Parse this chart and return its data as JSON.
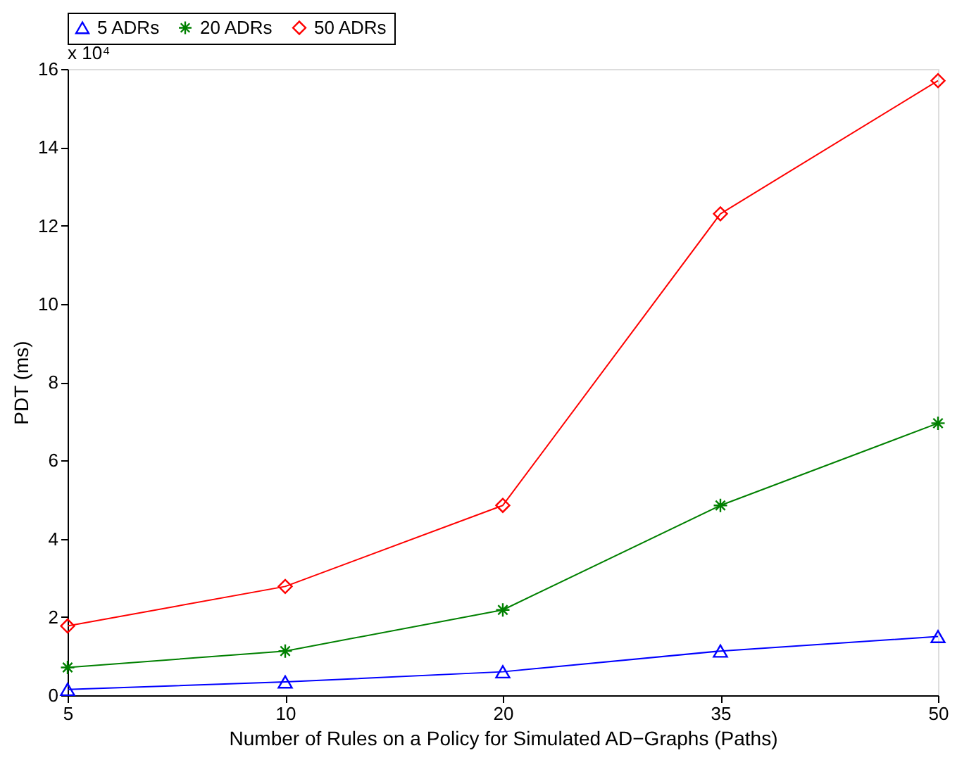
{
  "chart_data": {
    "type": "line",
    "xlabel": "Number of Rules on a Policy for Simulated AD−Graphs (Paths)",
    "ylabel": "PDT (ms)",
    "annotations": [
      "x 10⁴"
    ],
    "categories": [
      "5",
      "10",
      "20",
      "35",
      "50"
    ],
    "ylim": [
      0,
      16
    ],
    "yticks": [
      0,
      2,
      4,
      6,
      8,
      10,
      12,
      14,
      16
    ],
    "grid": false,
    "legend": "top",
    "series": [
      {
        "name": "5 ADRs",
        "color": "#0000ff",
        "marker": "triangle",
        "values": [
          0.15,
          0.34,
          0.6,
          1.13,
          1.5
        ]
      },
      {
        "name": "20 ADRs",
        "color": "#008000",
        "marker": "cross",
        "values": [
          0.71,
          1.13,
          2.18,
          4.85,
          6.95
        ]
      },
      {
        "name": "50 ADRs",
        "color": "#ff0000",
        "marker": "diamond",
        "values": [
          1.77,
          2.78,
          4.85,
          12.3,
          15.7
        ]
      }
    ]
  }
}
